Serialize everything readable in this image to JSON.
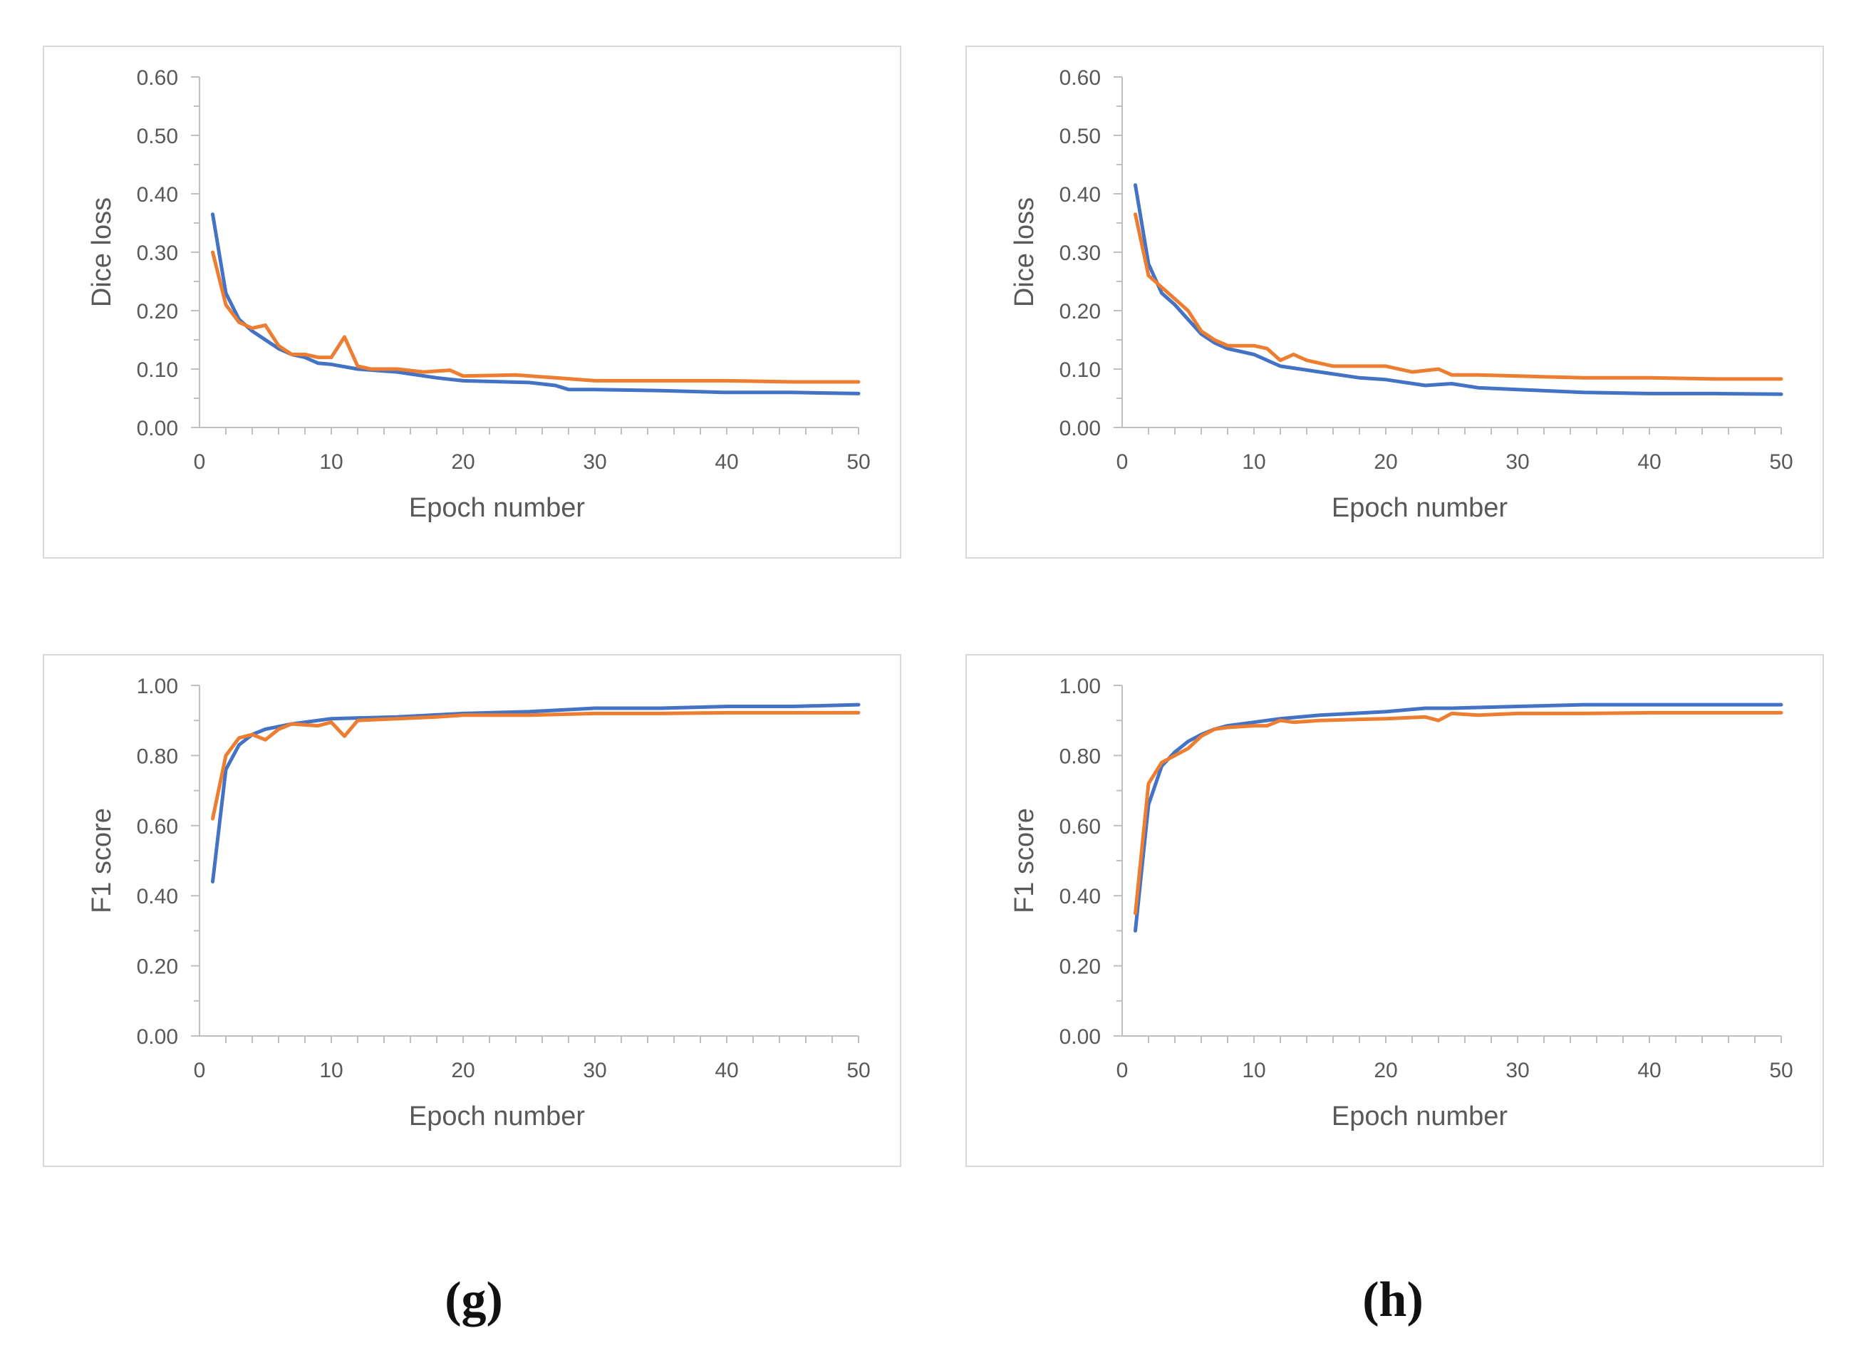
{
  "colors": {
    "blue": "#4472C4",
    "orange": "#ED7D31",
    "axis": "#bfbfbf",
    "text": "#595959"
  },
  "captions": {
    "left": "(g)",
    "right": "(h)"
  },
  "chart_data": [
    {
      "id": "g-dice",
      "type": "line",
      "xlabel": "Epoch number",
      "ylabel": "Dice loss",
      "xlim": [
        0,
        50
      ],
      "ylim": [
        0,
        0.6
      ],
      "xticks": [
        0,
        10,
        20,
        30,
        40,
        50
      ],
      "yticks": [
        0,
        0.1,
        0.2,
        0.3,
        0.4,
        0.5,
        0.6
      ],
      "ytick_labels": [
        "0.00",
        "0.10",
        "0.20",
        "0.30",
        "0.40",
        "0.50",
        "0.60"
      ],
      "series": [
        {
          "name": "blue",
          "color": "#4472C4",
          "x": [
            1,
            2,
            3,
            4,
            5,
            6,
            7,
            8,
            9,
            10,
            12,
            15,
            18,
            20,
            25,
            27,
            28,
            30,
            35,
            40,
            45,
            50
          ],
          "y": [
            0.365,
            0.23,
            0.185,
            0.165,
            0.15,
            0.135,
            0.125,
            0.12,
            0.11,
            0.108,
            0.1,
            0.095,
            0.085,
            0.08,
            0.077,
            0.072,
            0.065,
            0.065,
            0.063,
            0.06,
            0.06,
            0.058
          ]
        },
        {
          "name": "orange",
          "color": "#ED7D31",
          "x": [
            1,
            2,
            3,
            4,
            5,
            6,
            7,
            8,
            9,
            10,
            11,
            12,
            13,
            15,
            17,
            19,
            20,
            24,
            27,
            30,
            35,
            40,
            45,
            50
          ],
          "y": [
            0.3,
            0.21,
            0.18,
            0.17,
            0.175,
            0.14,
            0.125,
            0.125,
            0.12,
            0.12,
            0.155,
            0.105,
            0.1,
            0.1,
            0.095,
            0.098,
            0.088,
            0.09,
            0.085,
            0.08,
            0.08,
            0.08,
            0.078,
            0.078
          ]
        }
      ]
    },
    {
      "id": "h-dice",
      "type": "line",
      "xlabel": "Epoch number",
      "ylabel": "Dice loss",
      "xlim": [
        0,
        50
      ],
      "ylim": [
        0,
        0.6
      ],
      "xticks": [
        0,
        10,
        20,
        30,
        40,
        50
      ],
      "yticks": [
        0,
        0.1,
        0.2,
        0.3,
        0.4,
        0.5,
        0.6
      ],
      "ytick_labels": [
        "0.00",
        "0.10",
        "0.20",
        "0.30",
        "0.40",
        "0.50",
        "0.60"
      ],
      "series": [
        {
          "name": "blue",
          "color": "#4472C4",
          "x": [
            1,
            2,
            3,
            4,
            5,
            6,
            7,
            8,
            10,
            12,
            15,
            18,
            20,
            23,
            25,
            27,
            30,
            35,
            40,
            45,
            50
          ],
          "y": [
            0.415,
            0.28,
            0.23,
            0.21,
            0.185,
            0.16,
            0.145,
            0.135,
            0.125,
            0.105,
            0.095,
            0.085,
            0.082,
            0.072,
            0.075,
            0.068,
            0.065,
            0.06,
            0.058,
            0.058,
            0.057
          ]
        },
        {
          "name": "orange",
          "color": "#ED7D31",
          "x": [
            1,
            2,
            3,
            4,
            5,
            6,
            7,
            8,
            10,
            11,
            12,
            13,
            14,
            16,
            18,
            20,
            22,
            24,
            25,
            27,
            30,
            35,
            40,
            45,
            50
          ],
          "y": [
            0.365,
            0.26,
            0.24,
            0.22,
            0.2,
            0.165,
            0.15,
            0.14,
            0.14,
            0.135,
            0.115,
            0.125,
            0.115,
            0.105,
            0.105,
            0.105,
            0.095,
            0.1,
            0.09,
            0.09,
            0.088,
            0.085,
            0.085,
            0.083,
            0.083
          ]
        }
      ]
    },
    {
      "id": "g-f1",
      "type": "line",
      "xlabel": "Epoch number",
      "ylabel": "F1 score",
      "xlim": [
        0,
        50
      ],
      "ylim": [
        0,
        1.0
      ],
      "xticks": [
        0,
        10,
        20,
        30,
        40,
        50
      ],
      "yticks": [
        0,
        0.2,
        0.4,
        0.6,
        0.8,
        1.0
      ],
      "ytick_labels": [
        "0.00",
        "0.20",
        "0.40",
        "0.60",
        "0.80",
        "1.00"
      ],
      "series": [
        {
          "name": "blue",
          "color": "#4472C4",
          "x": [
            1,
            2,
            3,
            4,
            5,
            7,
            10,
            15,
            20,
            25,
            30,
            35,
            40,
            45,
            50
          ],
          "y": [
            0.44,
            0.76,
            0.83,
            0.86,
            0.875,
            0.89,
            0.905,
            0.91,
            0.92,
            0.925,
            0.935,
            0.935,
            0.94,
            0.94,
            0.945
          ]
        },
        {
          "name": "orange",
          "color": "#ED7D31",
          "x": [
            1,
            2,
            3,
            4,
            5,
            6,
            7,
            9,
            10,
            11,
            12,
            15,
            18,
            20,
            25,
            30,
            35,
            40,
            45,
            50
          ],
          "y": [
            0.62,
            0.8,
            0.85,
            0.86,
            0.845,
            0.875,
            0.89,
            0.885,
            0.895,
            0.855,
            0.9,
            0.905,
            0.91,
            0.915,
            0.915,
            0.92,
            0.92,
            0.922,
            0.922,
            0.922
          ]
        }
      ]
    },
    {
      "id": "h-f1",
      "type": "line",
      "xlabel": "Epoch number",
      "ylabel": "F1 score",
      "xlim": [
        0,
        50
      ],
      "ylim": [
        0,
        1.0
      ],
      "xticks": [
        0,
        10,
        20,
        30,
        40,
        50
      ],
      "yticks": [
        0,
        0.2,
        0.4,
        0.6,
        0.8,
        1.0
      ],
      "ytick_labels": [
        "0.00",
        "0.20",
        "0.40",
        "0.60",
        "0.80",
        "1.00"
      ],
      "series": [
        {
          "name": "blue",
          "color": "#4472C4",
          "x": [
            1,
            2,
            3,
            4,
            5,
            6,
            7,
            8,
            10,
            12,
            15,
            20,
            23,
            25,
            30,
            35,
            40,
            45,
            50
          ],
          "y": [
            0.3,
            0.66,
            0.77,
            0.81,
            0.84,
            0.86,
            0.875,
            0.885,
            0.895,
            0.905,
            0.915,
            0.925,
            0.935,
            0.935,
            0.94,
            0.945,
            0.945,
            0.945,
            0.945
          ]
        },
        {
          "name": "orange",
          "color": "#ED7D31",
          "x": [
            1,
            2,
            3,
            4,
            5,
            6,
            7,
            8,
            10,
            11,
            12,
            13,
            15,
            20,
            23,
            24,
            25,
            27,
            30,
            35,
            40,
            45,
            50
          ],
          "y": [
            0.35,
            0.72,
            0.78,
            0.8,
            0.82,
            0.855,
            0.875,
            0.88,
            0.885,
            0.885,
            0.9,
            0.895,
            0.9,
            0.905,
            0.91,
            0.9,
            0.92,
            0.915,
            0.92,
            0.92,
            0.922,
            0.922,
            0.922
          ]
        }
      ]
    }
  ]
}
